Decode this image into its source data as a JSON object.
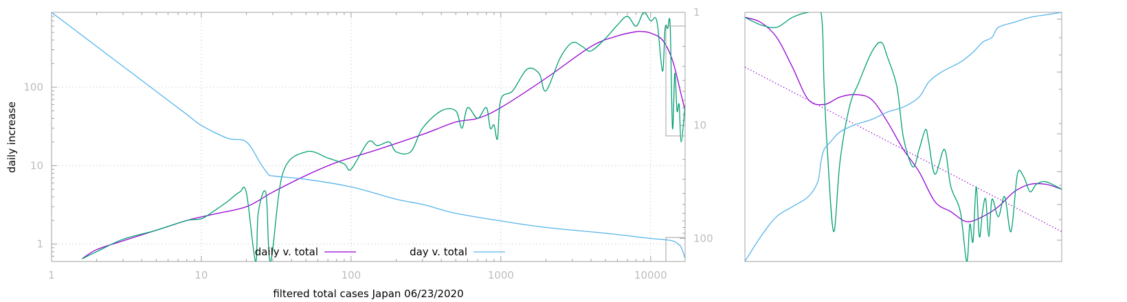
{
  "chart_data": [
    {
      "type": "line",
      "title": "",
      "xlabel": "filtered total cases Japan 06/23/2020",
      "ylabel": "daily increase",
      "y2label": "",
      "x_scale": "log",
      "y_scale": "log",
      "y2_scale": "log",
      "y2_reversed": true,
      "xlim": [
        1,
        17000
      ],
      "ylim": [
        0.6,
        900
      ],
      "y2lim": [
        1,
        160
      ],
      "grid": true,
      "legend_position": "bottom-center",
      "x_ticks": [
        {
          "value": 1,
          "label": "1"
        },
        {
          "value": 10,
          "label": "10"
        },
        {
          "value": 100,
          "label": "100"
        },
        {
          "value": 1000,
          "label": "1000"
        },
        {
          "value": 10000,
          "label": "10000"
        }
      ],
      "y_ticks": [
        {
          "value": 1,
          "label": "1"
        },
        {
          "value": 10,
          "label": "10"
        },
        {
          "value": 100,
          "label": "100"
        }
      ],
      "y2_ticks": [
        {
          "value": 1,
          "label": "1"
        },
        {
          "value": 10,
          "label": "10"
        },
        {
          "value": 100,
          "label": "100"
        }
      ],
      "series": [
        {
          "name": "daily v. total",
          "axis": "y",
          "color": "#9400d3",
          "x": [
            1.6,
            2,
            3,
            5,
            8,
            12,
            20,
            30,
            50,
            80,
            150,
            300,
            500,
            700,
            1000,
            2000,
            4000,
            6000,
            8000,
            9000,
            10000,
            12000,
            14000,
            16000,
            17000
          ],
          "y": [
            0.65,
            0.85,
            1.1,
            1.5,
            2.0,
            2.4,
            3.0,
            4.6,
            7.5,
            11.0,
            16.0,
            25.0,
            36.0,
            40.0,
            55.0,
            130.0,
            330.0,
            450.0,
            510.0,
            510.0,
            490.0,
            400.0,
            220.0,
            80.0,
            50.0
          ]
        },
        {
          "name": "",
          "axis": "y",
          "color": "#009e73",
          "x": [
            1.6,
            2,
            3,
            5,
            8,
            10,
            12,
            15,
            18,
            20,
            23,
            24,
            27,
            29,
            35,
            50,
            70,
            90,
            100,
            130,
            150,
            180,
            200,
            250,
            300,
            400,
            500,
            550,
            600,
            700,
            800,
            850,
            900,
            950,
            1000,
            1200,
            1500,
            1800,
            2000,
            2500,
            3000,
            3500,
            4000,
            5000,
            6000,
            7000,
            8000,
            9000,
            10000,
            11000,
            12000,
            12500,
            13000,
            13500,
            14000,
            14500,
            15000,
            15500,
            16000,
            17000
          ],
          "y": [
            0.65,
            0.8,
            1.15,
            1.5,
            2.0,
            2.1,
            2.6,
            3.5,
            4.6,
            4.5,
            0.6,
            2.5,
            4.5,
            0.6,
            8.0,
            15.0,
            12.5,
            10.5,
            9.0,
            20.0,
            18.0,
            20.0,
            15.0,
            15.0,
            30.0,
            50.0,
            50.0,
            30.0,
            55.0,
            40.0,
            55.0,
            30.0,
            33.0,
            22.0,
            70.0,
            90.0,
            170.0,
            150.0,
            90.0,
            240.0,
            370.0,
            330.0,
            290.0,
            420.0,
            620.0,
            800.0,
            600.0,
            900.0,
            700.0,
            700.0,
            160.0,
            570.0,
            560.0,
            620.0,
            30.0,
            150.0,
            50.0,
            60.0,
            20.0,
            60.0
          ]
        },
        {
          "name": "day v. total",
          "axis": "y2",
          "color": "#56b4e9",
          "x": [
            1,
            1.5,
            2,
            3,
            5,
            8,
            10,
            15,
            20,
            25,
            28,
            30,
            50,
            100,
            200,
            300,
            500,
            1000,
            2000,
            5000,
            10000,
            12000,
            14000,
            15000,
            16000,
            17000
          ],
          "y": [
            1.0,
            1.5,
            2.0,
            3.0,
            5.0,
            8.0,
            10.0,
            13.0,
            14.0,
            22.0,
            27.0,
            28.0,
            30.0,
            35.0,
            45.0,
            50.0,
            60.0,
            70.0,
            80.0,
            90.0,
            100.0,
            102.0,
            105.0,
            110.0,
            120.0,
            150.0
          ]
        }
      ]
    },
    {
      "type": "line",
      "title": "",
      "xlabel": "",
      "ylabel": "",
      "grid": false,
      "legend_position": "none",
      "xlim": [
        0,
        100
      ],
      "ylim": [
        0,
        100
      ],
      "series": [
        {
          "name": "",
          "color": "#9400d3",
          "style": "solid",
          "x": [
            0,
            5,
            10,
            15,
            20,
            25,
            30,
            35,
            40,
            45,
            50,
            55,
            60,
            65,
            70,
            75,
            80,
            85,
            90,
            95,
            100
          ],
          "y": [
            98,
            96,
            90,
            78,
            65,
            63,
            66,
            67,
            65,
            56,
            45,
            36,
            24,
            20,
            16,
            18,
            22,
            28,
            31,
            31,
            29
          ]
        },
        {
          "name": "",
          "color": "#9400d3",
          "style": "dotted",
          "x": [
            0,
            100
          ],
          "y": [
            78,
            12
          ]
        },
        {
          "name": "",
          "color": "#009e73",
          "style": "solid",
          "x": [
            0,
            5,
            10,
            15,
            20,
            24,
            25,
            26,
            28,
            30,
            33,
            36,
            40,
            43,
            45,
            48,
            50,
            53,
            55,
            57,
            58,
            60,
            63,
            65,
            68,
            70,
            71,
            72,
            73,
            74,
            75,
            76,
            77,
            78,
            80,
            82,
            84,
            86,
            88,
            90,
            92,
            95,
            100
          ],
          "y": [
            98,
            95,
            94,
            98,
            100,
            100,
            70,
            45,
            12,
            40,
            62,
            72,
            84,
            88,
            82,
            70,
            50,
            38,
            45,
            53,
            48,
            35,
            45,
            30,
            20,
            0,
            15,
            8,
            30,
            10,
            20,
            25,
            10,
            25,
            18,
            26,
            12,
            35,
            34,
            28,
            31,
            32,
            29
          ]
        },
        {
          "name": "",
          "color": "#56b4e9",
          "style": "solid",
          "x": [
            0,
            5,
            10,
            15,
            20,
            23,
            24,
            25,
            27,
            30,
            35,
            40,
            45,
            50,
            55,
            58,
            62,
            68,
            72,
            75,
            78,
            80,
            85,
            90,
            95,
            100
          ],
          "y": [
            0,
            10,
            18,
            22,
            26,
            32,
            40,
            45,
            48,
            52,
            55,
            57,
            60,
            62,
            66,
            72,
            76,
            80,
            84,
            88,
            90,
            94,
            96,
            98,
            99,
            100
          ]
        }
      ]
    }
  ]
}
